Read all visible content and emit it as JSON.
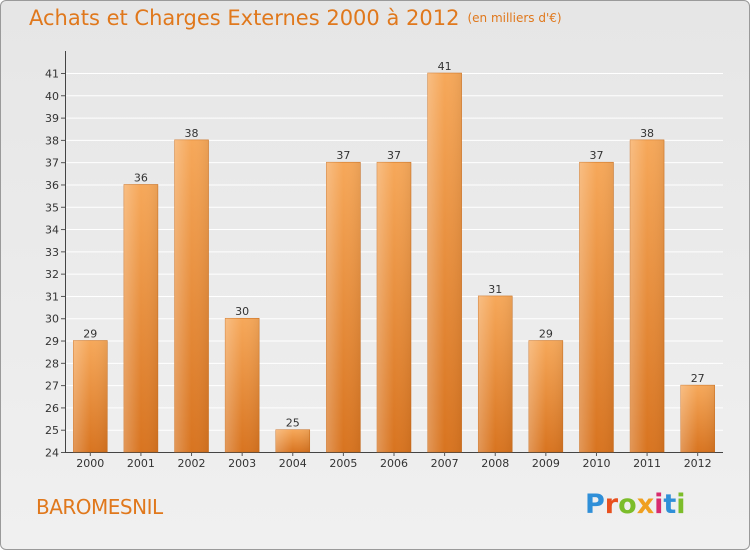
{
  "header": {
    "title": "Achats et Charges Externes 2000 à 2012",
    "subtitle": "(en milliers d'€)"
  },
  "footer": {
    "commune": "BAROMESNIL",
    "logo": "Proxiti"
  },
  "colors": {
    "accent": "#e0781c",
    "bar_light": "#f6a85a",
    "bar_dark": "#d87420"
  },
  "chart_data": {
    "type": "bar",
    "title": "Achats et Charges Externes 2000 à 2012",
    "subtitle": "(en milliers d'€)",
    "categories": [
      "2000",
      "2001",
      "2002",
      "2003",
      "2004",
      "2005",
      "2006",
      "2007",
      "2008",
      "2009",
      "2010",
      "2011",
      "2012"
    ],
    "values": [
      29,
      36,
      38,
      30,
      25,
      37,
      37,
      41,
      31,
      29,
      37,
      38,
      27
    ],
    "ylim": [
      24,
      41
    ],
    "yticks": [
      24,
      25,
      26,
      27,
      28,
      29,
      30,
      31,
      32,
      33,
      34,
      35,
      36,
      37,
      38,
      39,
      40,
      41
    ],
    "grid": true,
    "data_labels": true,
    "xlabel": "",
    "ylabel": ""
  }
}
